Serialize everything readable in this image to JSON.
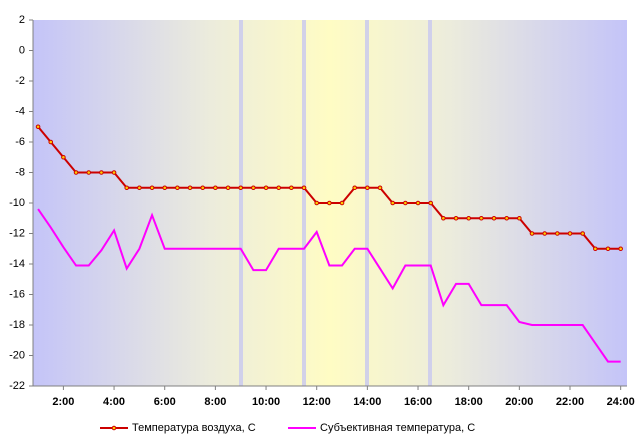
{
  "chart_data": {
    "type": "line",
    "x": [
      1,
      1.5,
      2,
      2.5,
      3,
      3.5,
      4,
      4.5,
      5,
      5.5,
      6,
      6.5,
      7,
      7.5,
      8,
      8.5,
      9,
      9.5,
      10,
      10.5,
      11,
      11.5,
      12,
      12.5,
      13,
      13.5,
      14,
      14.5,
      15,
      15.5,
      16,
      16.5,
      17,
      17.5,
      18,
      18.5,
      19,
      19.5,
      20,
      20.5,
      21,
      21.5,
      22,
      22.5,
      23,
      23.5,
      24
    ],
    "series": [
      {
        "name": "Температура воздуха, С",
        "color": "#cc0000",
        "values": [
          -5,
          -6,
          -7,
          -8,
          -8,
          -8,
          -8,
          -9,
          -9,
          -9,
          -9,
          -9,
          -9,
          -9,
          -9,
          -9,
          -9,
          -9,
          -9,
          -9,
          -9,
          -9,
          -10,
          -10,
          -10,
          -9,
          -9,
          -9,
          -10,
          -10,
          -10,
          -10,
          -11,
          -11,
          -11,
          -11,
          -11,
          -11,
          -11,
          -12,
          -12,
          -12,
          -12,
          -12,
          -13,
          -13,
          -13
        ]
      },
      {
        "name": "Субъективная температура, С",
        "color": "#ff00ff",
        "values": [
          -10.4,
          -11.6,
          -12.9,
          -14.1,
          -14.1,
          -13.1,
          -11.8,
          -14.3,
          -13,
          -10.8,
          -13,
          -13,
          -13,
          -13,
          -13,
          -13,
          -13,
          -14.4,
          -14.4,
          -13,
          -13,
          -13,
          -11.9,
          -14.1,
          -14.1,
          -13,
          -13,
          -14.3,
          -15.6,
          -14.1,
          -14.1,
          -14.1,
          -16.7,
          -15.3,
          -15.3,
          -16.7,
          -16.7,
          -16.7,
          -17.8,
          -18,
          -18,
          -18,
          -18,
          -18,
          -19.2,
          -20.4,
          -20.4
        ]
      }
    ],
    "xlim": [
      0.8,
      24.25
    ],
    "xticks": [
      {
        "value": 2,
        "label": "2:00"
      },
      {
        "value": 4,
        "label": "4:00"
      },
      {
        "value": 6,
        "label": "6:00"
      },
      {
        "value": 8,
        "label": "8:00"
      },
      {
        "value": 10,
        "label": "10:00"
      },
      {
        "value": 12,
        "label": "12:00"
      },
      {
        "value": 14,
        "label": "14:00"
      },
      {
        "value": 16,
        "label": "16:00"
      },
      {
        "value": 18,
        "label": "18:00"
      },
      {
        "value": 20,
        "label": "20:00"
      },
      {
        "value": 22,
        "label": "22:00"
      },
      {
        "value": 24,
        "label": "24:00"
      }
    ],
    "ylim": [
      -22,
      2
    ],
    "yticks": [
      -22,
      -20,
      -18,
      -16,
      -14,
      -12,
      -10,
      -8,
      -6,
      -4,
      -2,
      0,
      2
    ],
    "legend": "bottom"
  }
}
